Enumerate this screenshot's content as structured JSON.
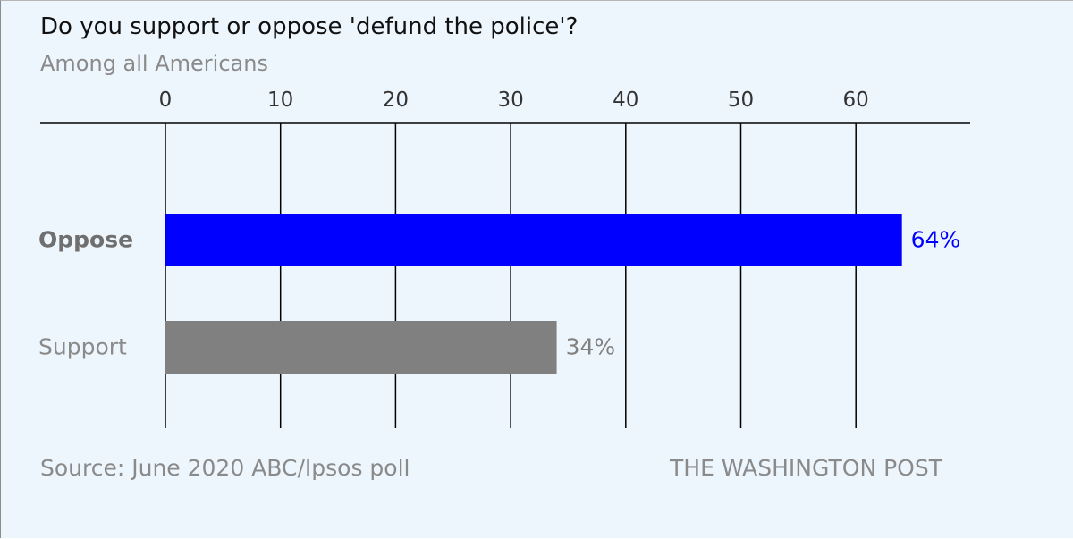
{
  "title": "Do you support or oppose 'defund the police'?",
  "subtitle": "Among all Americans",
  "source": "Source: June 2020 ABC/Ipsos poll",
  "credit": "THE WASHINGTON POST",
  "colors": {
    "background": "#eef6fd",
    "oppose": "#0000ff",
    "support": "#808080"
  },
  "chart_data": {
    "type": "bar",
    "orientation": "horizontal",
    "title": "Do you support or oppose 'defund the police'?",
    "subtitle": "Among all Americans",
    "categories": [
      "Oppose",
      "Support"
    ],
    "values": [
      64,
      34
    ],
    "value_labels": [
      "64%",
      "34%"
    ],
    "bar_colors": [
      "#0000ff",
      "#808080"
    ],
    "label_colors": [
      "#0000ff",
      "#808080"
    ],
    "category_label_bold": [
      true,
      false
    ],
    "xticks": [
      0,
      10,
      20,
      30,
      40,
      50,
      60
    ],
    "xlim": [
      0,
      70
    ],
    "xaxis_position": "top",
    "grid": "vertical",
    "xlabel": "",
    "ylabel": ""
  }
}
